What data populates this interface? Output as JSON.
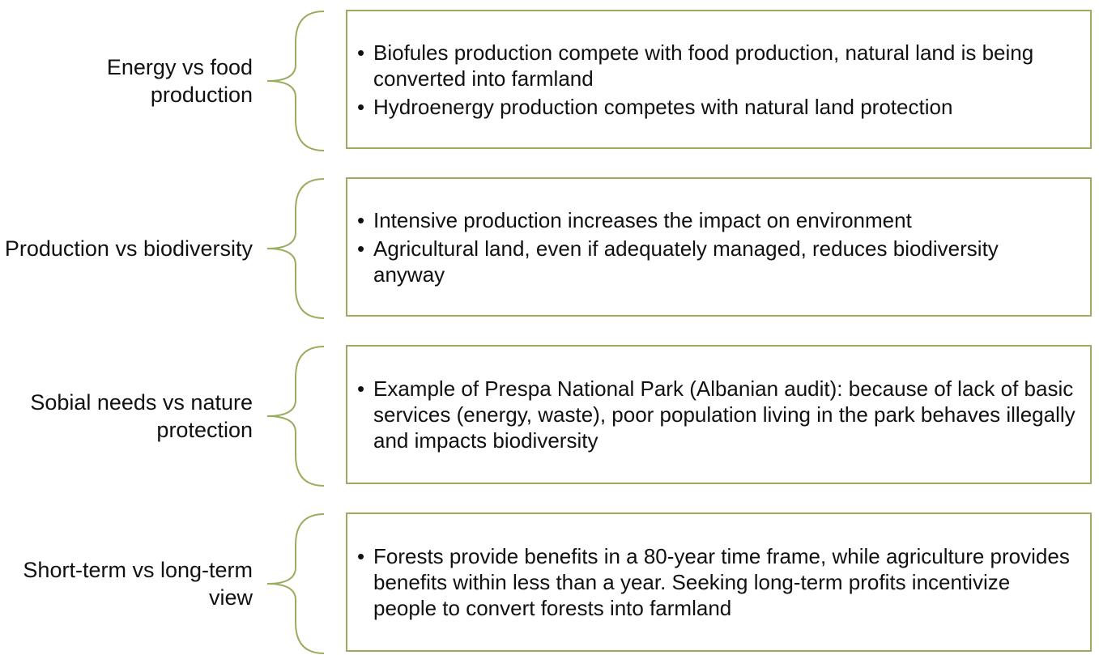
{
  "rows": [
    {
      "label": "Energy vs food production",
      "bullets": [
        "Biofules production compete with food production, natural land is being converted into farmland",
        "Hydroenergy production competes with natural land protection"
      ]
    },
    {
      "label": "Production vs biodiversity",
      "bullets": [
        "Intensive production increases the impact on environment",
        "Agricultural land, even if adequately managed, reduces biodiversity anyway"
      ]
    },
    {
      "label": "Sobial needs vs nature protection",
      "bullets": [
        "Example of Prespa National Park (Albanian audit): because of lack of basic services (energy, waste), poor population living in the park behaves illegally and impacts biodiversity"
      ]
    },
    {
      "label": "Short-term vs long-term view",
      "bullets": [
        "Forests provide benefits in a 80-year time frame, while agriculture provides benefits within less than a year. Seeking long-term profits incentivize people to convert forests into farmland"
      ]
    }
  ]
}
